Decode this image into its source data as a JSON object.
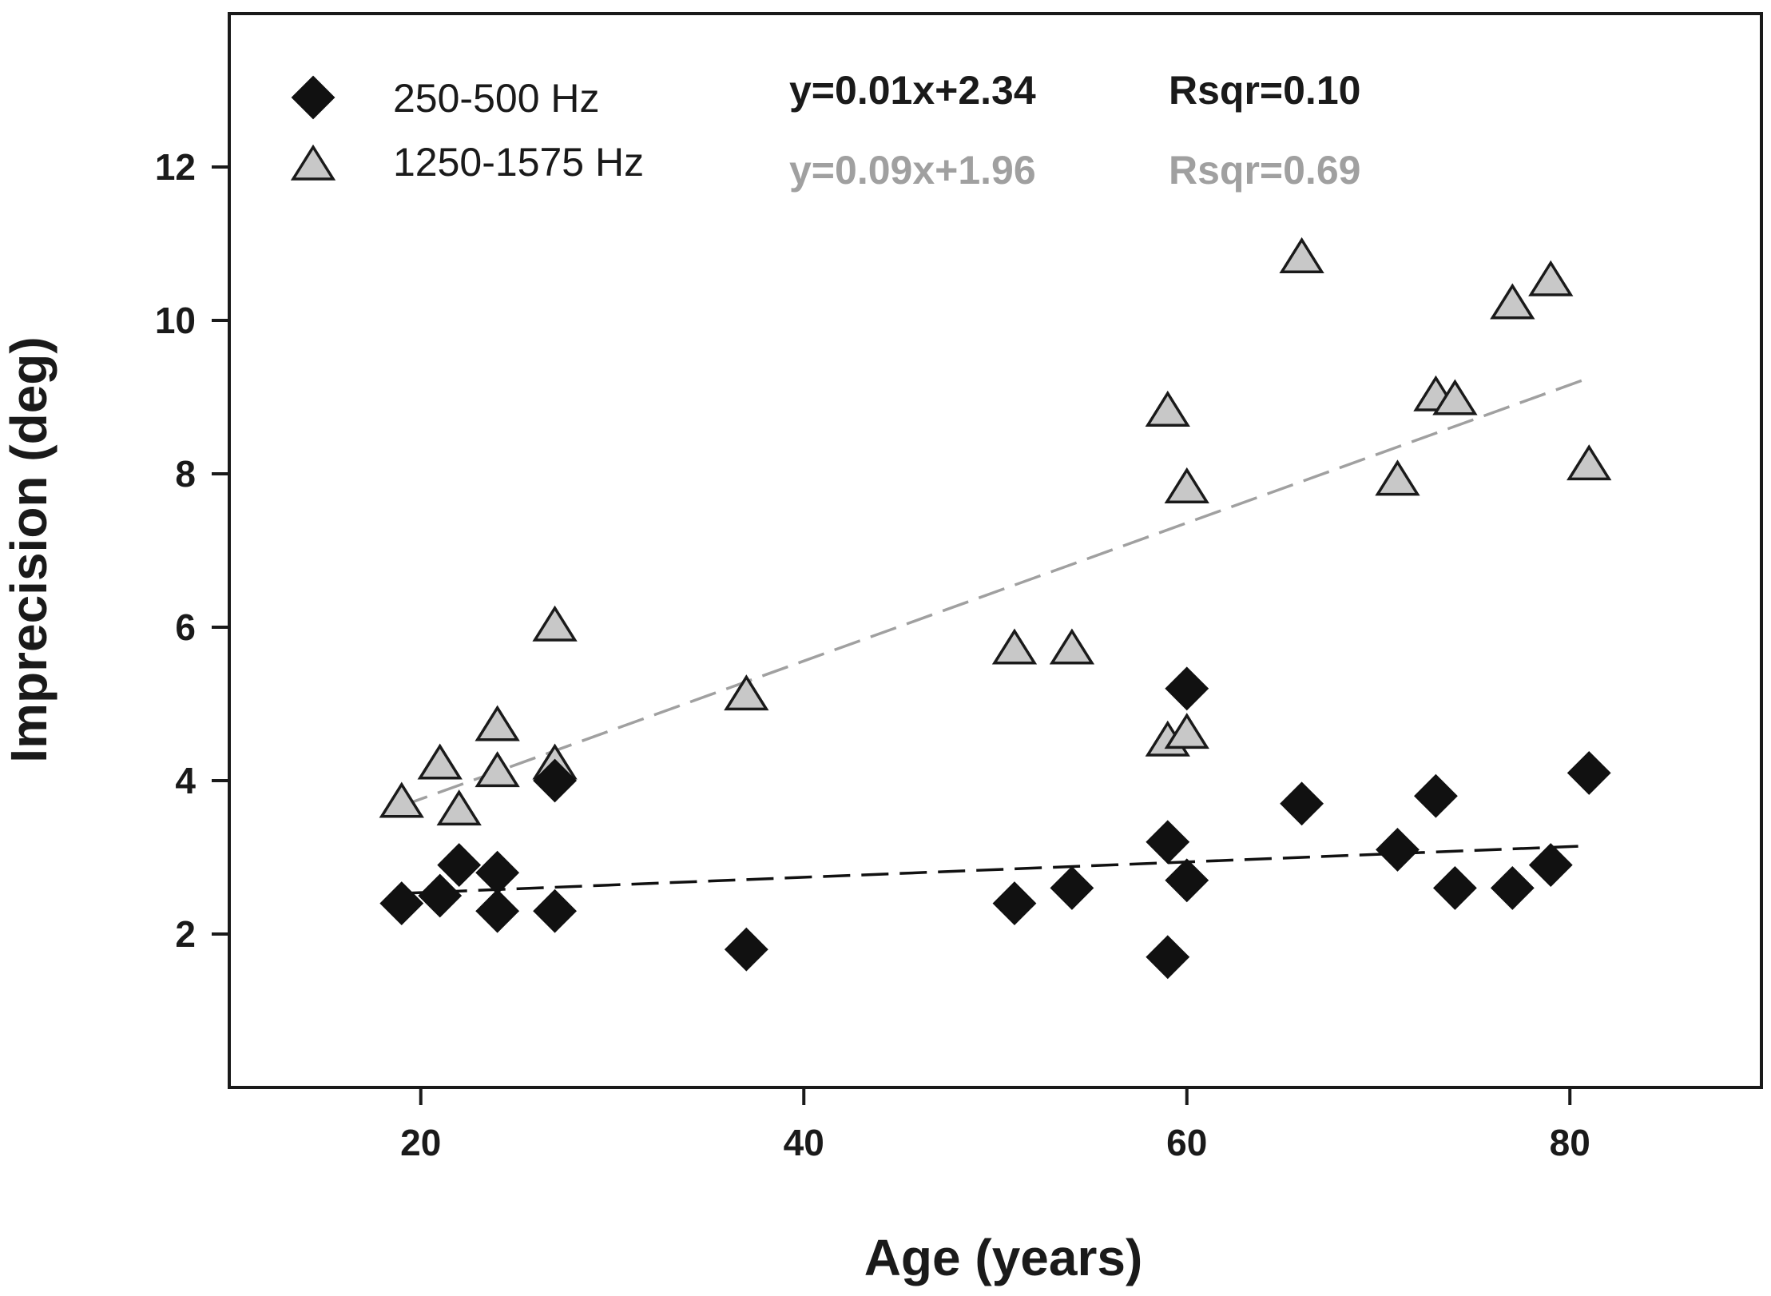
{
  "chart_data": {
    "type": "scatter",
    "title": "",
    "xlabel": "Age (years)",
    "ylabel": "Imprecision (deg)",
    "xlim": [
      10,
      90
    ],
    "ylim": [
      0,
      14
    ],
    "xticks": [
      20,
      40,
      60,
      80
    ],
    "yticks": [
      2,
      4,
      6,
      8,
      10,
      12
    ],
    "grid": false,
    "legend_position": "top-left",
    "series": [
      {
        "name": "250-500 Hz",
        "marker": "diamond",
        "color": "#111111",
        "fit": {
          "slope": 0.01,
          "intercept": 2.34,
          "x_range": [
            19,
            81
          ],
          "line_color": "#111111"
        },
        "equation_label": "y=0.01x+2.34",
        "r2_label": "Rsqr=0.10",
        "points": [
          [
            19,
            2.4
          ],
          [
            21,
            2.5
          ],
          [
            22,
            2.9
          ],
          [
            24,
            2.8
          ],
          [
            24,
            2.3
          ],
          [
            27,
            4.0
          ],
          [
            27,
            2.3
          ],
          [
            37,
            1.8
          ],
          [
            51,
            2.4
          ],
          [
            54,
            2.6
          ],
          [
            59,
            3.2
          ],
          [
            59,
            1.7
          ],
          [
            60,
            5.2
          ],
          [
            60,
            2.7
          ],
          [
            66,
            3.7
          ],
          [
            71,
            3.1
          ],
          [
            73,
            3.8
          ],
          [
            74,
            2.6
          ],
          [
            77,
            2.6
          ],
          [
            79,
            2.9
          ],
          [
            81,
            4.1
          ]
        ]
      },
      {
        "name": "1250-1575 Hz",
        "marker": "triangle",
        "color": "#c8c8c8",
        "fit": {
          "slope": 0.09,
          "intercept": 1.96,
          "x_range": [
            19,
            81
          ],
          "line_color": "#a0a0a0"
        },
        "equation_label": "y=0.09x+1.96",
        "r2_label": "Rsqr=0.69",
        "points": [
          [
            19,
            3.7
          ],
          [
            21,
            4.2
          ],
          [
            22,
            3.6
          ],
          [
            24,
            4.7
          ],
          [
            24,
            4.1
          ],
          [
            27,
            6.0
          ],
          [
            27,
            4.2
          ],
          [
            37,
            5.1
          ],
          [
            51,
            5.7
          ],
          [
            54,
            5.7
          ],
          [
            59,
            8.8
          ],
          [
            59,
            4.5
          ],
          [
            60,
            7.8
          ],
          [
            60,
            4.6
          ],
          [
            66,
            10.8
          ],
          [
            71,
            7.9
          ],
          [
            73,
            9.0
          ],
          [
            74,
            8.95
          ],
          [
            77,
            10.2
          ],
          [
            79,
            10.5
          ],
          [
            81,
            8.1
          ]
        ]
      }
    ]
  }
}
